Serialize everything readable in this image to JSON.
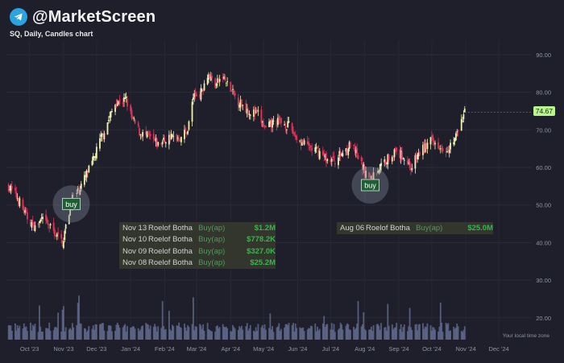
{
  "brand": {
    "handle": "@MarketScreen",
    "icon": "telegram-icon"
  },
  "chart_title": "SQ, Daily, Candles chart",
  "last_price_label": "74.67",
  "timezone_note": "Your local time zone",
  "colors": {
    "background": "#1e1f2b",
    "up": "#f0f0b0",
    "down": "#e0345a",
    "volume": "#6a7398",
    "buy_text": "#38b54f",
    "badge": "#b9f58e"
  },
  "buy_marker_label": "buy",
  "transactions": {
    "group1": [
      {
        "date": "Nov 13",
        "name": "Roelof Botha",
        "type": "Buy(ap)",
        "amount": "$1.2M"
      },
      {
        "date": "Nov 10",
        "name": "Roelof Botha",
        "type": "Buy(ap)",
        "amount": "$778.2K"
      },
      {
        "date": "Nov 09",
        "name": "Roelof Botha",
        "type": "Buy(ap)",
        "amount": "$327.0K"
      },
      {
        "date": "Nov 08",
        "name": "Roelof Botha",
        "type": "Buy(ap)",
        "amount": "$25.2M"
      }
    ],
    "group2": [
      {
        "date": "Aug 06",
        "name": "Roelof Botha",
        "type": "Buy(ap)",
        "amount": "$25.0M"
      }
    ]
  },
  "chart_data": {
    "type": "candlestick",
    "title": "SQ, Daily, Candles chart",
    "y_ticks": [
      "90.00",
      "80.00",
      "70.00",
      "60.00",
      "50.00",
      "40.00",
      "30.00",
      "20.00"
    ],
    "x_ticks": [
      "Oct '23",
      "Nov '23",
      "Dec '23",
      "Jan '24",
      "Feb '24",
      "Mar '24",
      "Apr '24",
      "May '24",
      "Jun '24",
      "Jul '24",
      "Aug '24",
      "Sep '24",
      "Oct '24",
      "Nov '24",
      "Dec '24"
    ],
    "ylim": [
      10,
      95
    ],
    "x_range": [
      "2023-09-10",
      "2024-12-31"
    ],
    "price_path": [
      [
        "2023-09-12",
        55
      ],
      [
        "2023-09-20",
        52
      ],
      [
        "2023-09-28",
        47
      ],
      [
        "2023-10-06",
        44
      ],
      [
        "2023-10-12",
        46
      ],
      [
        "2023-10-20",
        44
      ],
      [
        "2023-10-31",
        40
      ],
      [
        "2023-11-03",
        44
      ],
      [
        "2023-11-09",
        52
      ],
      [
        "2023-11-13",
        53
      ],
      [
        "2023-11-20",
        57
      ],
      [
        "2023-11-27",
        61
      ],
      [
        "2023-12-04",
        67
      ],
      [
        "2023-12-11",
        72
      ],
      [
        "2023-12-18",
        77
      ],
      [
        "2023-12-28",
        78
      ],
      [
        "2024-01-02",
        73
      ],
      [
        "2024-01-10",
        69
      ],
      [
        "2024-01-18",
        68
      ],
      [
        "2024-01-26",
        66
      ],
      [
        "2024-02-05",
        68
      ],
      [
        "2024-02-15",
        68
      ],
      [
        "2024-02-22",
        70
      ],
      [
        "2024-02-27",
        79
      ],
      [
        "2024-03-05",
        80
      ],
      [
        "2024-03-11",
        85
      ],
      [
        "2024-03-18",
        82
      ],
      [
        "2024-03-25",
        84
      ],
      [
        "2024-04-02",
        80
      ],
      [
        "2024-04-10",
        77
      ],
      [
        "2024-04-18",
        75
      ],
      [
        "2024-04-26",
        74
      ],
      [
        "2024-05-03",
        70
      ],
      [
        "2024-05-10",
        72
      ],
      [
        "2024-05-17",
        72
      ],
      [
        "2024-05-24",
        71
      ],
      [
        "2024-05-31",
        68
      ],
      [
        "2024-06-07",
        66
      ],
      [
        "2024-06-14",
        65
      ],
      [
        "2024-06-21",
        64
      ],
      [
        "2024-06-28",
        62
      ],
      [
        "2024-07-05",
        62
      ],
      [
        "2024-07-12",
        64
      ],
      [
        "2024-07-19",
        66
      ],
      [
        "2024-07-25",
        63
      ],
      [
        "2024-08-01",
        59
      ],
      [
        "2024-08-06",
        57
      ],
      [
        "2024-08-12",
        59
      ],
      [
        "2024-08-20",
        62
      ],
      [
        "2024-08-28",
        64
      ],
      [
        "2024-09-05",
        63
      ],
      [
        "2024-09-12",
        60
      ],
      [
        "2024-09-20",
        64
      ],
      [
        "2024-09-30",
        67
      ],
      [
        "2024-10-08",
        66
      ],
      [
        "2024-10-14",
        65
      ],
      [
        "2024-10-21",
        67
      ],
      [
        "2024-10-28",
        72
      ],
      [
        "2024-10-31",
        74.67
      ]
    ],
    "last_price": 74.67,
    "buy_markers": [
      {
        "date": "2023-11-08",
        "price": 52
      },
      {
        "date": "2024-08-06",
        "price": 57
      }
    ],
    "volume_ylim": [
      0,
      40
    ]
  }
}
